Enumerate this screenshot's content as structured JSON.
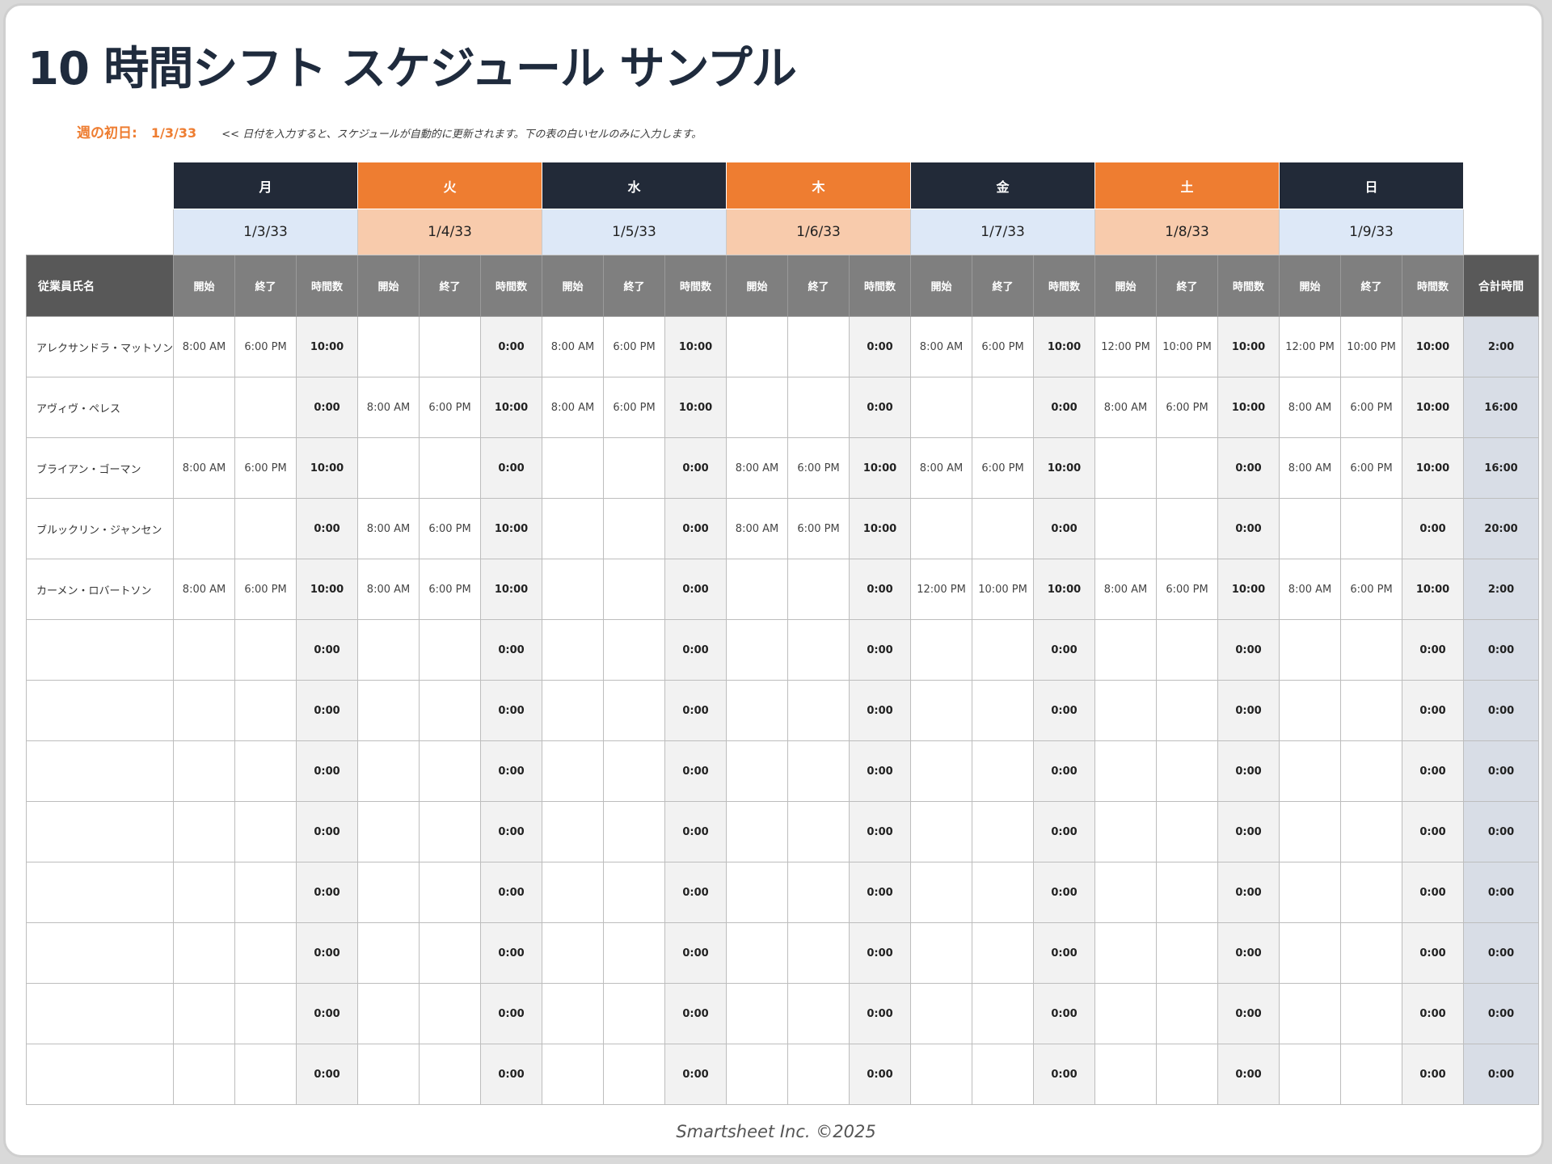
{
  "title": "10 時間シフト スケジュール サンプル",
  "week": {
    "label": "週の初日:",
    "date": "1/3/33",
    "hint": "<< 日付を入力すると、スケジュールが自動的に更新されます。下の表の白いセルのみに入力します。"
  },
  "days": [
    {
      "name": "月",
      "date": "1/3/33",
      "style": "dark"
    },
    {
      "name": "火",
      "date": "1/4/33",
      "style": "orange"
    },
    {
      "name": "水",
      "date": "1/5/33",
      "style": "dark"
    },
    {
      "name": "木",
      "date": "1/6/33",
      "style": "orange"
    },
    {
      "name": "金",
      "date": "1/7/33",
      "style": "dark"
    },
    {
      "name": "土",
      "date": "1/8/33",
      "style": "orange"
    },
    {
      "name": "日",
      "date": "1/9/33",
      "style": "dark"
    }
  ],
  "headers": {
    "employee": "従業員氏名",
    "start": "開始",
    "end": "終了",
    "hours": "時間数",
    "total": "合計時間"
  },
  "rows": [
    {
      "name": "アレクサンドラ・マットソン",
      "total": "2:00",
      "shifts": [
        [
          "8:00 AM",
          "6:00 PM",
          "10:00"
        ],
        [
          "",
          "",
          "0:00"
        ],
        [
          "8:00 AM",
          "6:00 PM",
          "10:00"
        ],
        [
          "",
          "",
          "0:00"
        ],
        [
          "8:00 AM",
          "6:00 PM",
          "10:00"
        ],
        [
          "12:00 PM",
          "10:00 PM",
          "10:00"
        ],
        [
          "12:00 PM",
          "10:00 PM",
          "10:00"
        ]
      ]
    },
    {
      "name": "アヴィヴ・ペレス",
      "total": "16:00",
      "shifts": [
        [
          "",
          "",
          "0:00"
        ],
        [
          "8:00 AM",
          "6:00 PM",
          "10:00"
        ],
        [
          "8:00 AM",
          "6:00 PM",
          "10:00"
        ],
        [
          "",
          "",
          "0:00"
        ],
        [
          "",
          "",
          "0:00"
        ],
        [
          "8:00 AM",
          "6:00 PM",
          "10:00"
        ],
        [
          "8:00 AM",
          "6:00 PM",
          "10:00"
        ]
      ]
    },
    {
      "name": "ブライアン・ゴーマン",
      "total": "16:00",
      "shifts": [
        [
          "8:00 AM",
          "6:00 PM",
          "10:00"
        ],
        [
          "",
          "",
          "0:00"
        ],
        [
          "",
          "",
          "0:00"
        ],
        [
          "8:00 AM",
          "6:00 PM",
          "10:00"
        ],
        [
          "8:00 AM",
          "6:00 PM",
          "10:00"
        ],
        [
          "",
          "",
          "0:00"
        ],
        [
          "8:00 AM",
          "6:00 PM",
          "10:00"
        ]
      ]
    },
    {
      "name": "ブルックリン・ジャンセン",
      "total": "20:00",
      "shifts": [
        [
          "",
          "",
          "0:00"
        ],
        [
          "8:00 AM",
          "6:00 PM",
          "10:00"
        ],
        [
          "",
          "",
          "0:00"
        ],
        [
          "8:00 AM",
          "6:00 PM",
          "10:00"
        ],
        [
          "",
          "",
          "0:00"
        ],
        [
          "",
          "",
          "0:00"
        ],
        [
          "",
          "",
          "0:00"
        ]
      ]
    },
    {
      "name": "カーメン・ロバートソン",
      "total": "2:00",
      "shifts": [
        [
          "8:00 AM",
          "6:00 PM",
          "10:00"
        ],
        [
          "8:00 AM",
          "6:00 PM",
          "10:00"
        ],
        [
          "",
          "",
          "0:00"
        ],
        [
          "",
          "",
          "0:00"
        ],
        [
          "12:00 PM",
          "10:00 PM",
          "10:00"
        ],
        [
          "8:00 AM",
          "6:00 PM",
          "10:00"
        ],
        [
          "8:00 AM",
          "6:00 PM",
          "10:00"
        ]
      ]
    },
    {
      "name": "",
      "total": "0:00",
      "shifts": [
        [
          "",
          "",
          "0:00"
        ],
        [
          "",
          "",
          "0:00"
        ],
        [
          "",
          "",
          "0:00"
        ],
        [
          "",
          "",
          "0:00"
        ],
        [
          "",
          "",
          "0:00"
        ],
        [
          "",
          "",
          "0:00"
        ],
        [
          "",
          "",
          "0:00"
        ]
      ]
    },
    {
      "name": "",
      "total": "0:00",
      "shifts": [
        [
          "",
          "",
          "0:00"
        ],
        [
          "",
          "",
          "0:00"
        ],
        [
          "",
          "",
          "0:00"
        ],
        [
          "",
          "",
          "0:00"
        ],
        [
          "",
          "",
          "0:00"
        ],
        [
          "",
          "",
          "0:00"
        ],
        [
          "",
          "",
          "0:00"
        ]
      ]
    },
    {
      "name": "",
      "total": "0:00",
      "shifts": [
        [
          "",
          "",
          "0:00"
        ],
        [
          "",
          "",
          "0:00"
        ],
        [
          "",
          "",
          "0:00"
        ],
        [
          "",
          "",
          "0:00"
        ],
        [
          "",
          "",
          "0:00"
        ],
        [
          "",
          "",
          "0:00"
        ],
        [
          "",
          "",
          "0:00"
        ]
      ]
    },
    {
      "name": "",
      "total": "0:00",
      "shifts": [
        [
          "",
          "",
          "0:00"
        ],
        [
          "",
          "",
          "0:00"
        ],
        [
          "",
          "",
          "0:00"
        ],
        [
          "",
          "",
          "0:00"
        ],
        [
          "",
          "",
          "0:00"
        ],
        [
          "",
          "",
          "0:00"
        ],
        [
          "",
          "",
          "0:00"
        ]
      ]
    },
    {
      "name": "",
      "total": "0:00",
      "shifts": [
        [
          "",
          "",
          "0:00"
        ],
        [
          "",
          "",
          "0:00"
        ],
        [
          "",
          "",
          "0:00"
        ],
        [
          "",
          "",
          "0:00"
        ],
        [
          "",
          "",
          "0:00"
        ],
        [
          "",
          "",
          "0:00"
        ],
        [
          "",
          "",
          "0:00"
        ]
      ]
    },
    {
      "name": "",
      "total": "0:00",
      "shifts": [
        [
          "",
          "",
          "0:00"
        ],
        [
          "",
          "",
          "0:00"
        ],
        [
          "",
          "",
          "0:00"
        ],
        [
          "",
          "",
          "0:00"
        ],
        [
          "",
          "",
          "0:00"
        ],
        [
          "",
          "",
          "0:00"
        ],
        [
          "",
          "",
          "0:00"
        ]
      ]
    },
    {
      "name": "",
      "total": "0:00",
      "shifts": [
        [
          "",
          "",
          "0:00"
        ],
        [
          "",
          "",
          "0:00"
        ],
        [
          "",
          "",
          "0:00"
        ],
        [
          "",
          "",
          "0:00"
        ],
        [
          "",
          "",
          "0:00"
        ],
        [
          "",
          "",
          "0:00"
        ],
        [
          "",
          "",
          "0:00"
        ]
      ]
    },
    {
      "name": "",
      "total": "0:00",
      "shifts": [
        [
          "",
          "",
          "0:00"
        ],
        [
          "",
          "",
          "0:00"
        ],
        [
          "",
          "",
          "0:00"
        ],
        [
          "",
          "",
          "0:00"
        ],
        [
          "",
          "",
          "0:00"
        ],
        [
          "",
          "",
          "0:00"
        ],
        [
          "",
          "",
          "0:00"
        ]
      ]
    }
  ],
  "footer": "Smartsheet Inc. ©2025",
  "colors": {
    "dark": "#222a38",
    "orange": "#ee7d31",
    "date_blue": "#dde8f7",
    "date_orange": "#f8cbac",
    "total_col": "#d8dde6"
  }
}
